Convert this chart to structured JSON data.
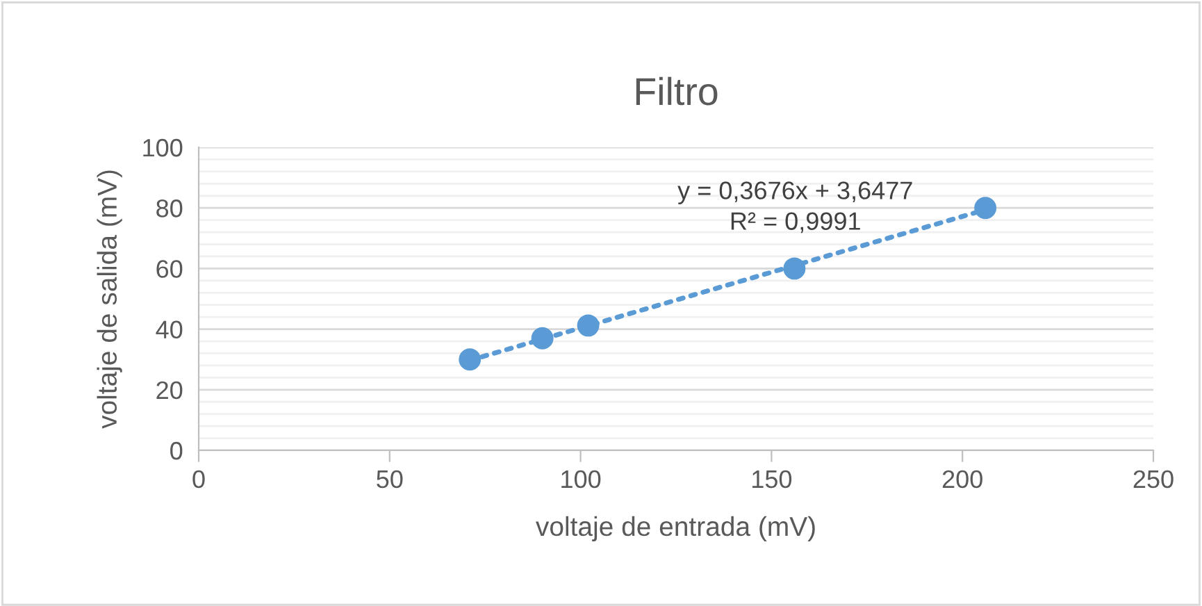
{
  "chart_data": {
    "type": "scatter",
    "title": "Filtro",
    "xlabel": "voltaje de entrada (mV)",
    "ylabel": "voltaje de salida (mV)",
    "x": [
      71,
      90,
      102,
      156,
      206
    ],
    "series": [
      {
        "color": "#5b9bd5",
        "values": [
          30,
          37,
          41.2,
          60,
          80
        ],
        "marker": "circle"
      },
      {
        "type": "line",
        "color": "#5b9bd5",
        "x": [
          71,
          206
        ],
        "values": [
          29.7,
          79.4
        ],
        "line_style": "dotted",
        "marker": "none"
      }
    ],
    "annotations": [
      "y = 0,3676x + 3,6477\nR² = 0,9991"
    ],
    "xlim": [
      0,
      250
    ],
    "xticks": [
      0,
      50,
      100,
      150,
      200,
      250
    ],
    "ylim": [
      0,
      100
    ],
    "yticks": [
      0,
      {
        "value": 4,
        "label": null
      },
      {
        "value": 8,
        "label": null
      },
      {
        "value": 12,
        "label": null
      },
      {
        "value": 16,
        "label": null
      },
      20,
      {
        "value": 24,
        "label": null
      },
      {
        "value": 28,
        "label": null
      },
      {
        "value": 32,
        "label": null
      },
      {
        "value": 36,
        "label": null
      },
      40,
      {
        "value": 44,
        "label": null
      },
      {
        "value": 48,
        "label": null
      },
      {
        "value": 52,
        "label": null
      },
      {
        "value": 56,
        "label": null
      },
      60,
      {
        "value": 64,
        "label": null
      },
      {
        "value": 68,
        "label": null
      },
      {
        "value": 72,
        "label": null
      },
      {
        "value": 76,
        "label": null
      },
      80,
      {
        "value": 84,
        "label": null
      },
      {
        "value": 88,
        "label": null
      },
      {
        "value": 92,
        "label": null
      },
      {
        "value": 96,
        "label": null
      },
      100
    ],
    "grid": "y"
  }
}
